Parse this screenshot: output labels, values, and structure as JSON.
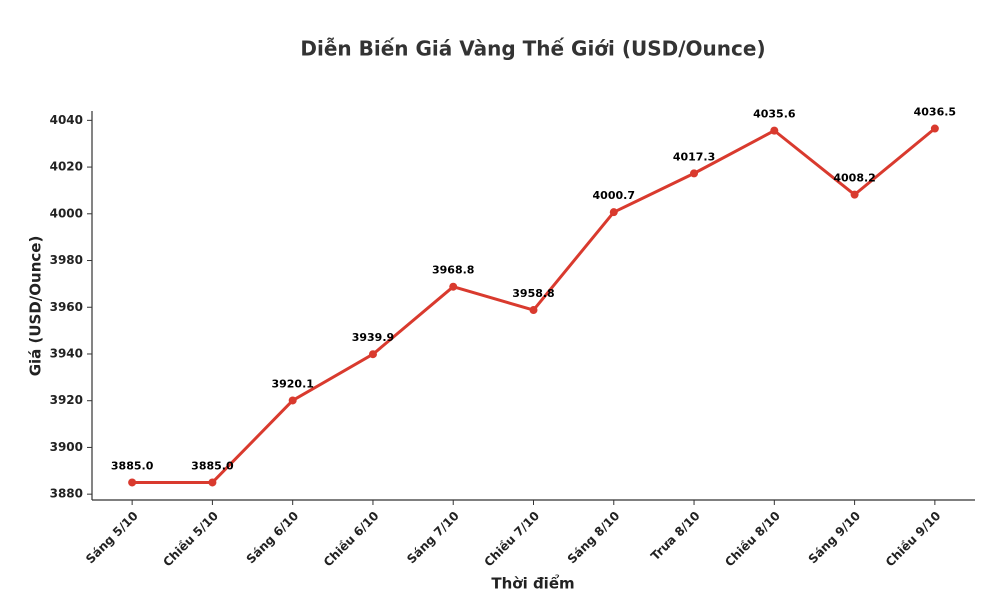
{
  "chart_data": {
    "type": "line",
    "title": "Diễn Biến Giá Vàng Thế Giới (USD/Ounce)",
    "x_label": "Thời điểm",
    "y_label": "Giá (USD/Ounce)",
    "categories": [
      "Sáng 5/10",
      "Chiều 5/10",
      "Sáng 6/10",
      "Chiều 6/10",
      "Sáng 7/10",
      "Chiều 7/10",
      "Sáng 8/10",
      "Trưa 8/10",
      "Chiều 8/10",
      "Sáng 9/10",
      "Chiều 9/10"
    ],
    "values": [
      3885.0,
      3885.0,
      3920.1,
      3939.9,
      3968.8,
      3958.8,
      4000.7,
      4017.3,
      4035.6,
      4008.2,
      4036.5
    ],
    "value_labels": [
      "3885.0",
      "3885.0",
      "3920.1",
      "3939.9",
      "3968.8",
      "3958.8",
      "4000.7",
      "4017.3",
      "4035.6",
      "4008.2",
      "4036.5"
    ],
    "color": "#d93a2e",
    "ylim": [
      3877.5,
      4044
    ],
    "yticks": [
      3880,
      3900,
      3920,
      3940,
      3960,
      3980,
      4000,
      4020,
      4040
    ],
    "grid": false
  }
}
